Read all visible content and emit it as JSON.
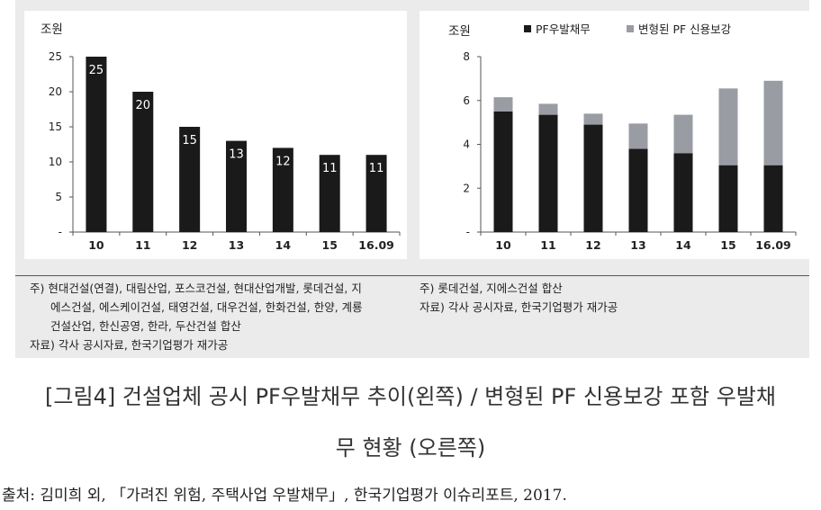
{
  "chart_data": [
    {
      "type": "bar",
      "unit_label": "조원",
      "categories": [
        "10",
        "11",
        "12",
        "13",
        "14",
        "15",
        "16.09"
      ],
      "values": [
        25,
        20,
        15,
        13,
        12,
        11,
        11
      ],
      "data_labels": [
        "25",
        "20",
        "15",
        "13",
        "12",
        "11",
        "11"
      ],
      "yticks": [
        "25",
        "20",
        "15",
        "10",
        "5",
        "-"
      ],
      "ylim": [
        0,
        25
      ],
      "grid": false,
      "bar_color": "#1a1a1a",
      "label_color": "#ffffff"
    },
    {
      "type": "bar",
      "stacked": true,
      "unit_label": "조원",
      "categories": [
        "10",
        "11",
        "12",
        "13",
        "14",
        "15",
        "16.09"
      ],
      "series": [
        {
          "name": "PF우발채무",
          "values": [
            5.5,
            5.35,
            4.9,
            3.8,
            3.6,
            3.05,
            3.05
          ],
          "color": "#1a1a1a"
        },
        {
          "name": "변형된 PF 신용보강",
          "values": [
            0.65,
            0.5,
            0.5,
            1.15,
            1.75,
            3.5,
            3.85
          ],
          "color": "#9a9ca4"
        }
      ],
      "yticks": [
        "8",
        "6",
        "4",
        "2",
        "-"
      ],
      "ylim": [
        0,
        8
      ],
      "grid": false,
      "legend": "top"
    }
  ],
  "notes_left": [
    "주)  현대건설(연결), 대림산업, 포스코건설, 현대산업개발, 롯데건설, 지",
    "에스건설, 에스케이건설, 태영건설, 대우건설, 한화건설, 한양, 계룡",
    "건설산업, 한신공영, 한라, 두산건설 합산",
    "자료) 각사 공시자료, 한국기업평가 재가공"
  ],
  "notes_right": [
    "주)  롯데건설, 지에스건설 합산",
    "자료) 각사 공시자료, 한국기업평가 재가공"
  ],
  "caption_line1": "[그림4] 건설업체 공시 PF우발채무 추이(왼쪽) / 변형된 PF 신용보강 포함 우발채",
  "caption_line2": "무 현황 (오른쪽)",
  "source": "출처: 김미희 외, 「가려진 위험, 주택사업 우발채무」, 한국기업평가 이슈리포트, 2017."
}
